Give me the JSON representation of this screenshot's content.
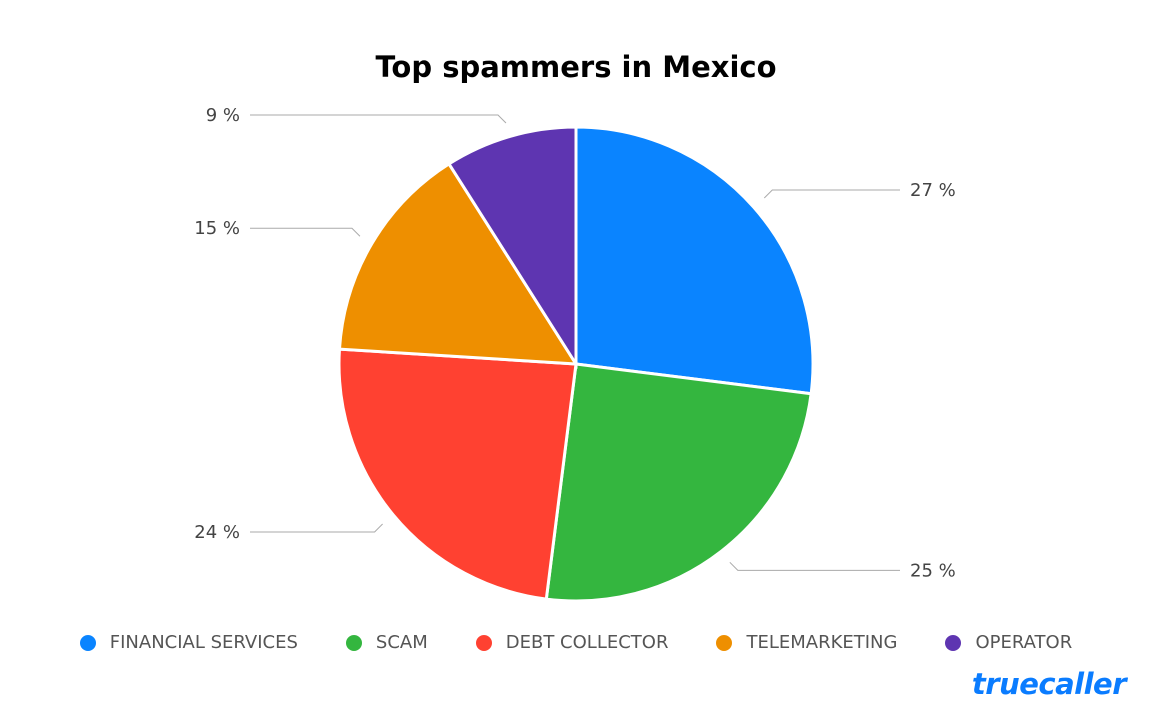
{
  "chart_data": {
    "type": "pie",
    "title": "Top spammers in Mexico",
    "start_angle": "12 o'clock",
    "direction": "clockwise",
    "legend_position": "bottom",
    "slices": [
      {
        "name": "FINANCIAL SERVICES",
        "value": 27,
        "label": "27 %",
        "color": "#0a84ff"
      },
      {
        "name": "SCAM",
        "value": 25,
        "label": "25 %",
        "color": "#34b63f"
      },
      {
        "name": "DEBT COLLECTOR",
        "value": 24,
        "label": "24 %",
        "color": "#ff4131"
      },
      {
        "name": "TELEMARKETING",
        "value": 15,
        "label": "15 %",
        "color": "#ee8f00"
      },
      {
        "name": "OPERATOR",
        "value": 9,
        "label": "9 %",
        "color": "#5e35b1"
      }
    ]
  },
  "logo": "truecaller"
}
